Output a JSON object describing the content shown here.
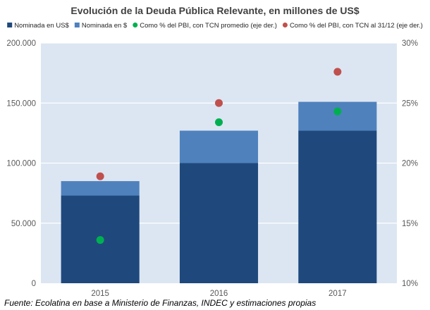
{
  "chart_data": {
    "type": "bar",
    "title": "Evolución de la Deuda Pública Relevante, en millones de US$",
    "categories": [
      "2015",
      "2016",
      "2017"
    ],
    "stacked": true,
    "series": [
      {
        "name": "Nominada en US$",
        "axis": "left",
        "kind": "bar",
        "color": "#1f497d",
        "values": [
          73000,
          100000,
          127000
        ]
      },
      {
        "name": "Nominada en $",
        "axis": "left",
        "kind": "bar",
        "color": "#4f81bd",
        "values": [
          12000,
          27000,
          24000
        ]
      },
      {
        "name": "Como % del PBI, con TCN promedio (eje der.)",
        "axis": "right",
        "kind": "scatter",
        "color": "#00b050",
        "values": [
          13.6,
          23.4,
          24.3
        ]
      },
      {
        "name": "Como % del PBI, con TCN al 31/12 (eje der.)",
        "axis": "right",
        "kind": "scatter",
        "color": "#c0504d",
        "values": [
          18.9,
          25.0,
          27.6
        ]
      }
    ],
    "y_left": {
      "ylim": [
        0,
        200000
      ],
      "ticks": [
        0,
        50000,
        100000,
        150000,
        200000
      ],
      "tick_labels": [
        "0",
        "50.000",
        "100.000",
        "150.000",
        "200.000"
      ]
    },
    "y_right": {
      "ylim": [
        10,
        30
      ],
      "ticks": [
        10,
        15,
        20,
        25,
        30
      ],
      "tick_labels": [
        "10%",
        "15%",
        "20%",
        "25%",
        "30%"
      ]
    },
    "grid": true,
    "legend": "top",
    "plot_background": "#dce6f2",
    "source": "Fuente: Ecolatina en base a Ministerio de Finanzas, INDEC y estimaciones propias"
  }
}
